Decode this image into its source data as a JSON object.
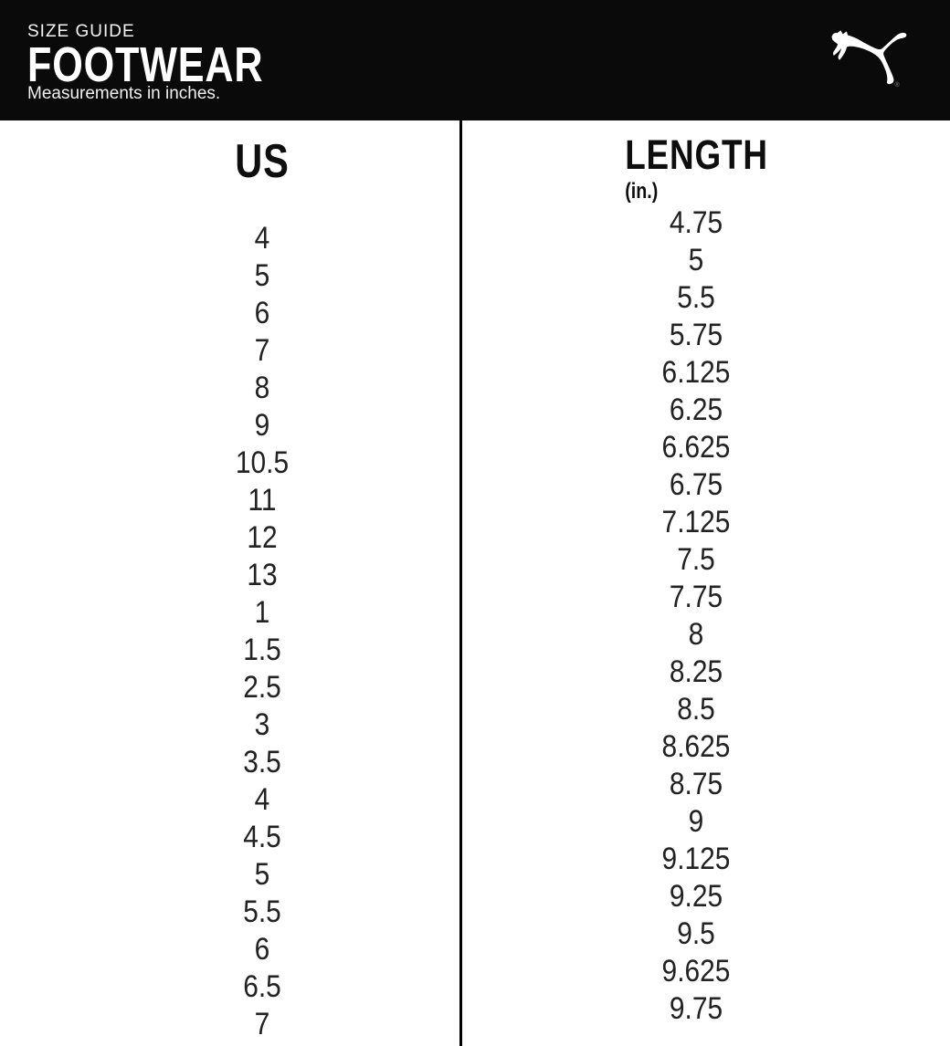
{
  "header": {
    "eyebrow": "SIZE GUIDE",
    "title": "FOOTWEAR",
    "subtitle": "Measurements in inches.",
    "logo_icon": "puma-cat-logo",
    "registered_mark": "®"
  },
  "table": {
    "columns": [
      {
        "label": "US",
        "sublabel": ""
      },
      {
        "label": "LENGTH",
        "sublabel": "(in.)"
      }
    ],
    "us_sizes": [
      "4",
      "5",
      "6",
      "7",
      "8",
      "9",
      "10.5",
      "11",
      "12",
      "13",
      "1",
      "1.5",
      "2.5",
      "3",
      "3.5",
      "4",
      "4.5",
      "5",
      "5.5",
      "6",
      "6.5",
      "7"
    ],
    "length_in": [
      "4.75",
      "5",
      "5.5",
      "5.75",
      "6.125",
      "6.25",
      "6.625",
      "6.75",
      "7.125",
      "7.5",
      "7.75",
      "8",
      "8.25",
      "8.5",
      "8.625",
      "8.75",
      "9",
      "9.125",
      "9.25",
      "9.5",
      "9.625",
      "9.75"
    ]
  },
  "colors": {
    "header_background": "#0a0a0a",
    "header_text": "#ffffff",
    "body_background": "#ffffff",
    "table_text": "#222222",
    "divider": "#000000",
    "logo": "#ffffff"
  }
}
